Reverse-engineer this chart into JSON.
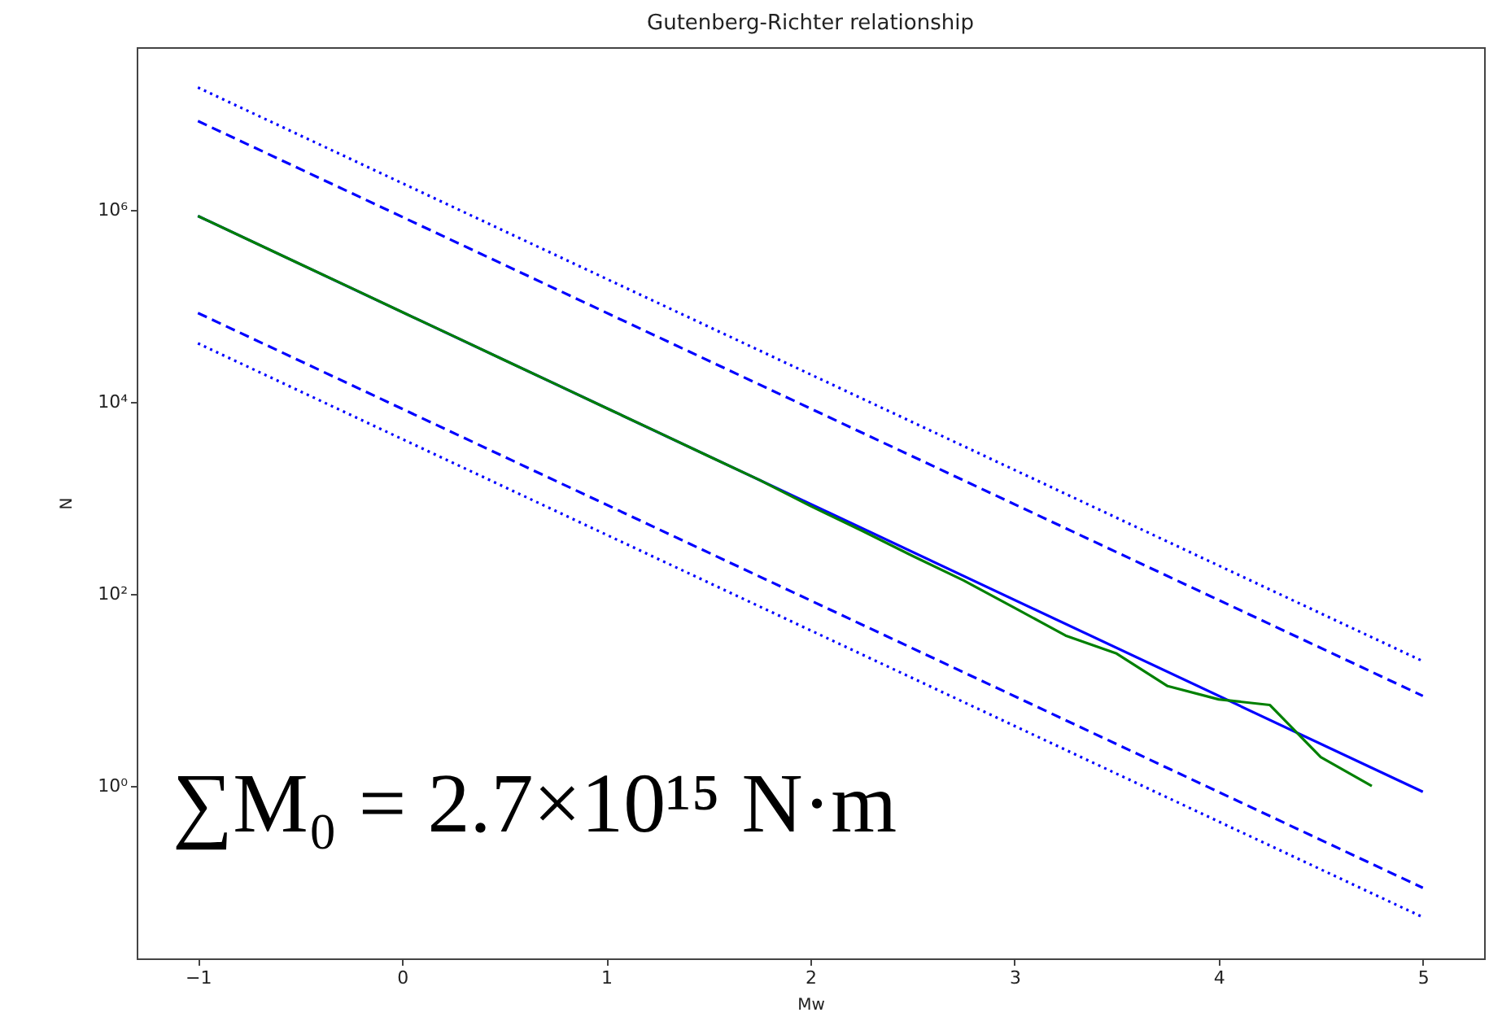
{
  "chart_data": {
    "type": "line",
    "title": "Gutenberg-Richter relationship",
    "xlabel": "Mw",
    "ylabel": "N",
    "log": "y",
    "grid": false,
    "xlim": [
      -1.3,
      5.3
    ],
    "xticks": [
      -1,
      0,
      1,
      2,
      3,
      4,
      5
    ],
    "ylim": [
      0.016,
      50000000
    ],
    "yticks": [
      {
        "value": 1,
        "label": "10⁰"
      },
      {
        "value": 100,
        "label": "10²"
      },
      {
        "value": 10000,
        "label": "10⁴"
      },
      {
        "value": 1000000,
        "label": "10⁶"
      }
    ],
    "annotations": [
      "∑M₀ = 2.7×10¹⁵ N·m"
    ],
    "series": [
      {
        "color": "#0000ff",
        "line_style": "dotted",
        "x": [
          -1,
          5
        ],
        "values": [
          19000000,
          20
        ]
      },
      {
        "color": "#0000ff",
        "line_style": "dashed",
        "x": [
          -1,
          5
        ],
        "values": [
          8500000,
          8.7
        ]
      },
      {
        "color": "#0000ff",
        "line_style": "solid",
        "x": [
          -1,
          5
        ],
        "values": [
          870000,
          0.87
        ]
      },
      {
        "color": "#0000ff",
        "line_style": "dashed",
        "x": [
          -1,
          5
        ],
        "values": [
          85000,
          0.087
        ]
      },
      {
        "color": "#0000ff",
        "line_style": "dotted",
        "x": [
          -1,
          5
        ],
        "values": [
          41000,
          0.043
        ]
      },
      {
        "color": "#008000",
        "line_style": "solid",
        "x": [
          -1,
          -0.75,
          -0.5,
          -0.25,
          0,
          0.25,
          0.5,
          0.75,
          1,
          1.25,
          1.5,
          1.75,
          2,
          2.25,
          2.5,
          2.75,
          3,
          3.25,
          3.5,
          3.75,
          4,
          4.25,
          4.5,
          4.75
        ],
        "values": [
          870000,
          490000,
          275000,
          155000,
          87000,
          49000,
          27500,
          15500,
          8700,
          4900,
          2750,
          1550,
          830,
          460,
          250,
          139,
          72,
          37,
          24,
          11,
          8,
          7,
          2,
          1
        ]
      }
    ]
  }
}
